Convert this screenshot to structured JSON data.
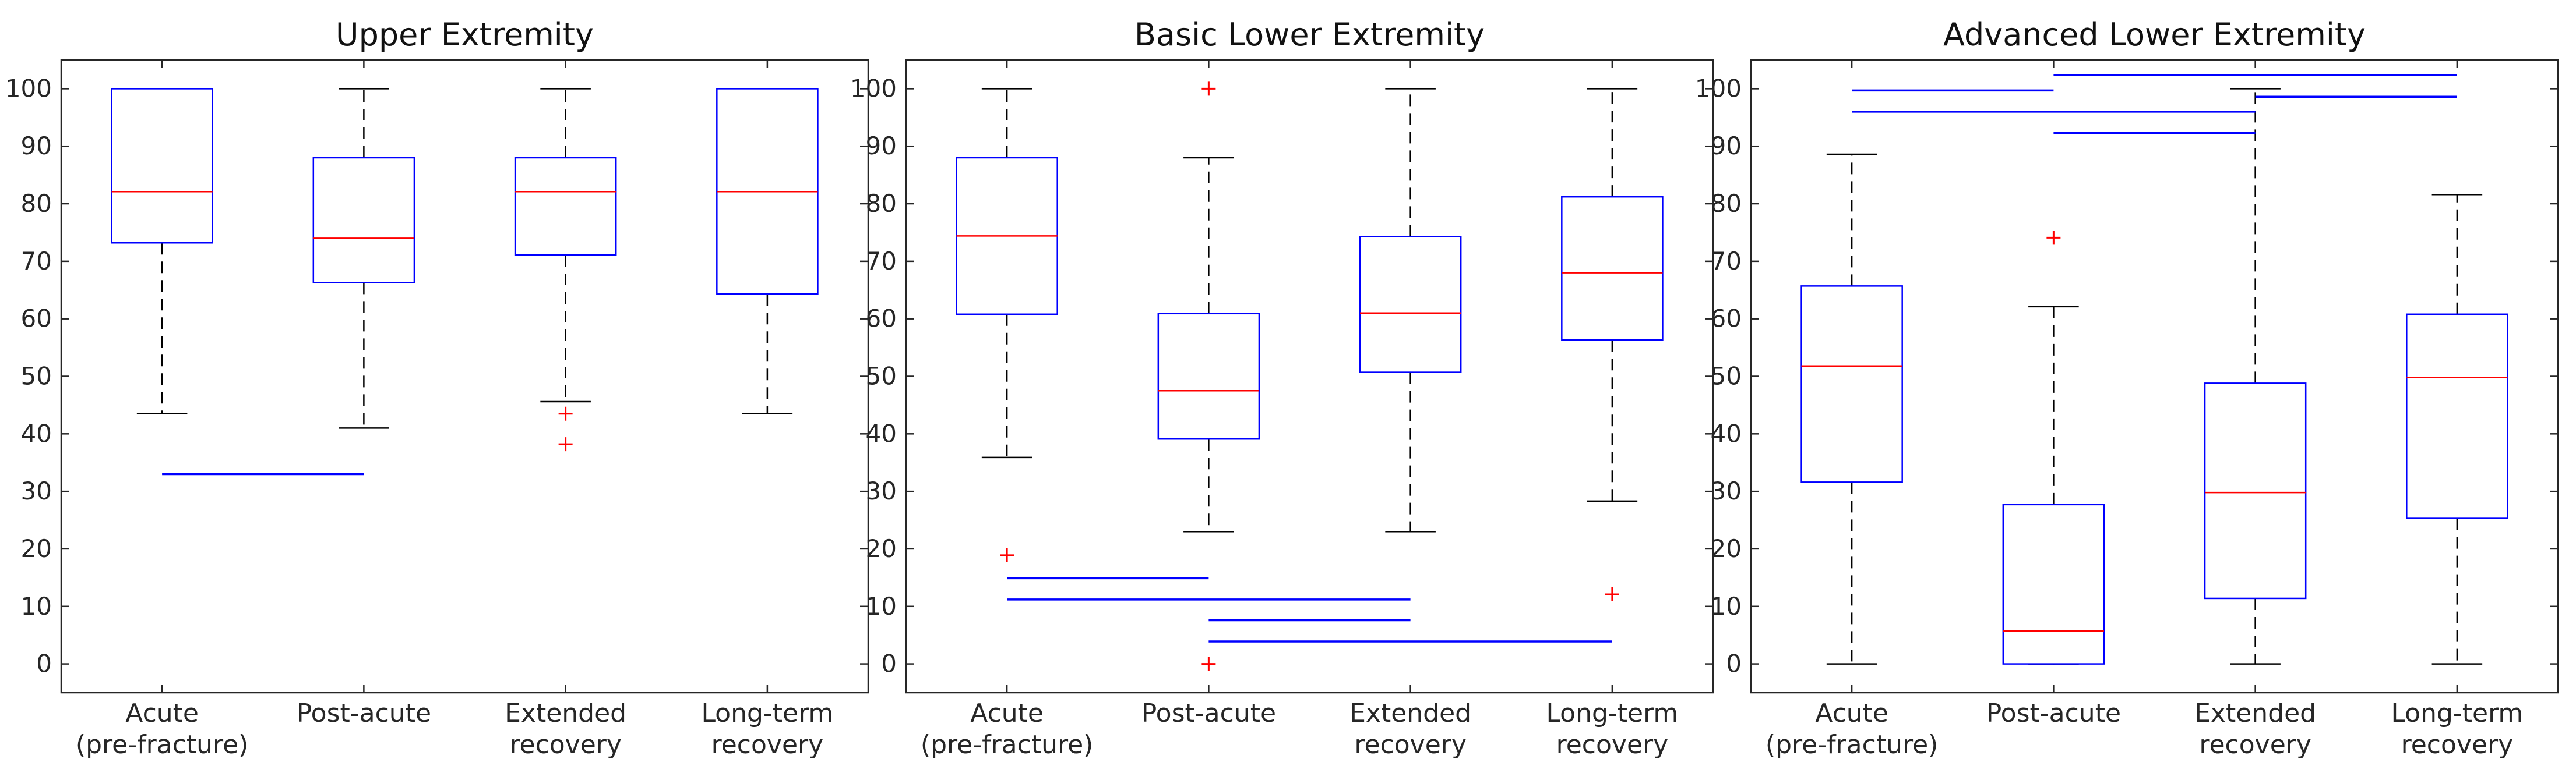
{
  "chart_data": [
    {
      "type": "box",
      "title": "Upper Extremity",
      "categories": [
        [
          "Acute",
          "(pre-fracture)"
        ],
        [
          "Post-acute"
        ],
        [
          "Extended",
          "recovery"
        ],
        [
          "Long-term",
          "recovery"
        ]
      ],
      "ylim": [
        -5,
        105
      ],
      "yticks": [
        0,
        10,
        20,
        30,
        40,
        50,
        60,
        70,
        80,
        90,
        100
      ],
      "boxes": [
        {
          "q1": 73.2,
          "median": 82.1,
          "q3": 100,
          "whisker_low": 43.5,
          "whisker_high": 100,
          "outliers": []
        },
        {
          "q1": 66.3,
          "median": 74.0,
          "q3": 88.0,
          "whisker_low": 41.0,
          "whisker_high": 100,
          "outliers": []
        },
        {
          "q1": 71.1,
          "median": 82.1,
          "q3": 88.0,
          "whisker_low": 45.6,
          "whisker_high": 100,
          "outliers": [
            43.5,
            38.2
          ]
        },
        {
          "q1": 64.3,
          "median": 82.1,
          "q3": 100,
          "whisker_low": 43.5,
          "whisker_high": 100,
          "outliers": []
        }
      ],
      "significance_bars": [
        {
          "from": 1,
          "to": 2,
          "y": 33.0
        }
      ],
      "grid": false
    },
    {
      "type": "box",
      "title": "Basic Lower Extremity",
      "categories": [
        [
          "Acute",
          "(pre-fracture)"
        ],
        [
          "Post-acute"
        ],
        [
          "Extended",
          "recovery"
        ],
        [
          "Long-term",
          "recovery"
        ]
      ],
      "ylim": [
        -5,
        105
      ],
      "yticks": [
        0,
        10,
        20,
        30,
        40,
        50,
        60,
        70,
        80,
        90,
        100
      ],
      "boxes": [
        {
          "q1": 60.8,
          "median": 74.4,
          "q3": 88.0,
          "whisker_low": 35.9,
          "whisker_high": 100,
          "outliers": [
            18.9
          ]
        },
        {
          "q1": 39.1,
          "median": 47.5,
          "q3": 60.9,
          "whisker_low": 23.0,
          "whisker_high": 88.0,
          "outliers": [
            100,
            0
          ]
        },
        {
          "q1": 50.7,
          "median": 61.0,
          "q3": 74.3,
          "whisker_low": 23.0,
          "whisker_high": 100,
          "outliers": []
        },
        {
          "q1": 56.3,
          "median": 68.0,
          "q3": 81.2,
          "whisker_low": 28.3,
          "whisker_high": 100,
          "outliers": [
            12.1
          ]
        }
      ],
      "significance_bars": [
        {
          "from": 1,
          "to": 2,
          "y": 14.9
        },
        {
          "from": 1,
          "to": 3,
          "y": 11.2
        },
        {
          "from": 2,
          "to": 3,
          "y": 7.6
        },
        {
          "from": 2,
          "to": 4,
          "y": 3.9
        }
      ],
      "grid": false
    },
    {
      "type": "box",
      "title": "Advanced Lower Extremity",
      "categories": [
        [
          "Acute",
          "(pre-fracture)"
        ],
        [
          "Post-acute"
        ],
        [
          "Extended",
          "recovery"
        ],
        [
          "Long-term",
          "recovery"
        ]
      ],
      "ylim": [
        -5,
        105
      ],
      "yticks": [
        0,
        10,
        20,
        30,
        40,
        50,
        60,
        70,
        80,
        90,
        100
      ],
      "boxes": [
        {
          "q1": 31.6,
          "median": 51.8,
          "q3": 65.7,
          "whisker_low": 0,
          "whisker_high": 88.6,
          "outliers": []
        },
        {
          "q1": 0,
          "median": 5.7,
          "q3": 27.7,
          "whisker_low": 0,
          "whisker_high": 62.1,
          "outliers": [
            74.1
          ]
        },
        {
          "q1": 11.4,
          "median": 29.8,
          "q3": 48.8,
          "whisker_low": 0,
          "whisker_high": 100,
          "outliers": []
        },
        {
          "q1": 25.3,
          "median": 49.8,
          "q3": 60.8,
          "whisker_low": 0,
          "whisker_high": 81.6,
          "outliers": []
        }
      ],
      "significance_bars": [
        {
          "from": 1,
          "to": 2,
          "y": 99.7
        },
        {
          "from": 1,
          "to": 3,
          "y": 96.0
        },
        {
          "from": 2,
          "to": 3,
          "y": 92.3
        },
        {
          "from": 2,
          "to": 4,
          "y": 102.4
        },
        {
          "from": 3,
          "to": 4,
          "y": 98.6
        }
      ],
      "grid": false
    }
  ],
  "colors": {
    "box": "#0000ff",
    "median": "#ff0000",
    "whisker": "#000000",
    "outlier": "#ff0000",
    "significance": "#0000ff",
    "axis": "#262626"
  }
}
